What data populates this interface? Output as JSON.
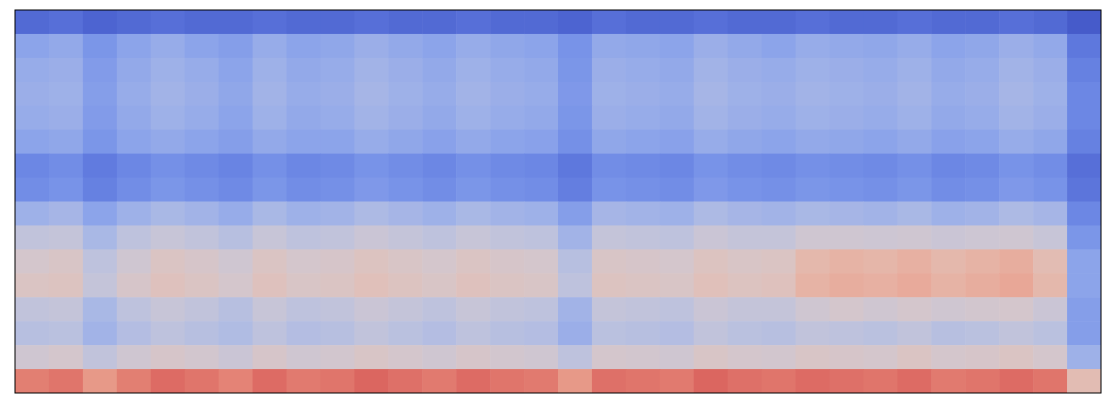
{
  "chart_data": {
    "type": "heatmap",
    "tick_labels": false,
    "zlim": [
      0,
      1
    ],
    "cells": [
      [
        0.1,
        0.12,
        0.08,
        0.1,
        0.12,
        0.1,
        0.1,
        0.12,
        0.1,
        0.1,
        0.12,
        0.1,
        0.1,
        0.12,
        0.1,
        0.1,
        0.08,
        0.12,
        0.1,
        0.1,
        0.12,
        0.1,
        0.1,
        0.12,
        0.1,
        0.1,
        0.12,
        0.1,
        0.1,
        0.12,
        0.1,
        0.05
      ],
      [
        0.3,
        0.32,
        0.25,
        0.3,
        0.33,
        0.3,
        0.28,
        0.33,
        0.3,
        0.31,
        0.34,
        0.32,
        0.3,
        0.33,
        0.31,
        0.3,
        0.24,
        0.32,
        0.31,
        0.3,
        0.34,
        0.32,
        0.3,
        0.33,
        0.32,
        0.31,
        0.33,
        0.3,
        0.31,
        0.34,
        0.32,
        0.15
      ],
      [
        0.33,
        0.34,
        0.27,
        0.32,
        0.35,
        0.33,
        0.3,
        0.35,
        0.32,
        0.33,
        0.36,
        0.34,
        0.32,
        0.35,
        0.33,
        0.32,
        0.25,
        0.34,
        0.33,
        0.32,
        0.36,
        0.34,
        0.33,
        0.35,
        0.34,
        0.33,
        0.35,
        0.32,
        0.33,
        0.36,
        0.34,
        0.18
      ],
      [
        0.34,
        0.35,
        0.28,
        0.33,
        0.36,
        0.34,
        0.31,
        0.36,
        0.33,
        0.34,
        0.37,
        0.35,
        0.33,
        0.36,
        0.34,
        0.33,
        0.26,
        0.35,
        0.34,
        0.33,
        0.37,
        0.35,
        0.34,
        0.36,
        0.35,
        0.34,
        0.36,
        0.33,
        0.34,
        0.37,
        0.35,
        0.2
      ],
      [
        0.33,
        0.34,
        0.27,
        0.32,
        0.35,
        0.33,
        0.3,
        0.35,
        0.32,
        0.33,
        0.36,
        0.34,
        0.32,
        0.35,
        0.33,
        0.32,
        0.25,
        0.34,
        0.33,
        0.32,
        0.36,
        0.34,
        0.33,
        0.35,
        0.34,
        0.33,
        0.35,
        0.32,
        0.33,
        0.36,
        0.34,
        0.2
      ],
      [
        0.3,
        0.31,
        0.25,
        0.3,
        0.32,
        0.3,
        0.28,
        0.32,
        0.3,
        0.3,
        0.33,
        0.31,
        0.29,
        0.32,
        0.3,
        0.29,
        0.23,
        0.31,
        0.3,
        0.29,
        0.33,
        0.31,
        0.3,
        0.32,
        0.31,
        0.3,
        0.32,
        0.29,
        0.3,
        0.33,
        0.31,
        0.18
      ],
      [
        0.2,
        0.22,
        0.16,
        0.2,
        0.23,
        0.21,
        0.19,
        0.23,
        0.2,
        0.21,
        0.24,
        0.22,
        0.2,
        0.23,
        0.21,
        0.2,
        0.15,
        0.22,
        0.21,
        0.2,
        0.24,
        0.22,
        0.21,
        0.23,
        0.22,
        0.21,
        0.23,
        0.2,
        0.21,
        0.24,
        0.22,
        0.12
      ],
      [
        0.22,
        0.24,
        0.18,
        0.22,
        0.25,
        0.23,
        0.21,
        0.25,
        0.22,
        0.23,
        0.26,
        0.24,
        0.22,
        0.25,
        0.23,
        0.22,
        0.17,
        0.24,
        0.23,
        0.22,
        0.26,
        0.24,
        0.23,
        0.25,
        0.24,
        0.23,
        0.25,
        0.22,
        0.23,
        0.26,
        0.24,
        0.14
      ],
      [
        0.35,
        0.37,
        0.3,
        0.35,
        0.38,
        0.36,
        0.33,
        0.38,
        0.35,
        0.36,
        0.39,
        0.37,
        0.35,
        0.38,
        0.36,
        0.35,
        0.28,
        0.37,
        0.36,
        0.35,
        0.39,
        0.37,
        0.36,
        0.38,
        0.37,
        0.36,
        0.38,
        0.35,
        0.36,
        0.39,
        0.37,
        0.2
      ],
      [
        0.45,
        0.46,
        0.38,
        0.44,
        0.47,
        0.45,
        0.42,
        0.47,
        0.44,
        0.45,
        0.48,
        0.46,
        0.44,
        0.47,
        0.45,
        0.44,
        0.36,
        0.46,
        0.45,
        0.44,
        0.48,
        0.46,
        0.46,
        0.5,
        0.5,
        0.49,
        0.5,
        0.48,
        0.49,
        0.5,
        0.47,
        0.25
      ],
      [
        0.52,
        0.54,
        0.44,
        0.5,
        0.55,
        0.53,
        0.5,
        0.55,
        0.52,
        0.53,
        0.56,
        0.54,
        0.52,
        0.55,
        0.53,
        0.52,
        0.42,
        0.54,
        0.53,
        0.52,
        0.56,
        0.54,
        0.55,
        0.62,
        0.64,
        0.63,
        0.65,
        0.62,
        0.64,
        0.66,
        0.6,
        0.3
      ],
      [
        0.55,
        0.56,
        0.46,
        0.53,
        0.57,
        0.55,
        0.52,
        0.57,
        0.54,
        0.55,
        0.58,
        0.56,
        0.54,
        0.57,
        0.55,
        0.54,
        0.44,
        0.56,
        0.55,
        0.54,
        0.58,
        0.56,
        0.57,
        0.64,
        0.66,
        0.65,
        0.67,
        0.64,
        0.66,
        0.68,
        0.62,
        0.3
      ],
      [
        0.45,
        0.46,
        0.38,
        0.44,
        0.47,
        0.45,
        0.42,
        0.47,
        0.44,
        0.45,
        0.48,
        0.46,
        0.44,
        0.47,
        0.45,
        0.44,
        0.36,
        0.46,
        0.45,
        0.44,
        0.48,
        0.46,
        0.46,
        0.5,
        0.52,
        0.5,
        0.52,
        0.5,
        0.51,
        0.52,
        0.48,
        0.28
      ],
      [
        0.42,
        0.43,
        0.36,
        0.41,
        0.44,
        0.42,
        0.4,
        0.44,
        0.41,
        0.42,
        0.45,
        0.43,
        0.41,
        0.44,
        0.42,
        0.41,
        0.34,
        0.43,
        0.42,
        0.41,
        0.45,
        0.43,
        0.42,
        0.45,
        0.44,
        0.43,
        0.45,
        0.42,
        0.43,
        0.45,
        0.43,
        0.28
      ],
      [
        0.5,
        0.52,
        0.45,
        0.5,
        0.53,
        0.51,
        0.48,
        0.53,
        0.5,
        0.51,
        0.54,
        0.52,
        0.5,
        0.53,
        0.51,
        0.5,
        0.44,
        0.52,
        0.51,
        0.5,
        0.54,
        0.52,
        0.51,
        0.54,
        0.53,
        0.52,
        0.55,
        0.52,
        0.53,
        0.55,
        0.52,
        0.35
      ],
      [
        0.78,
        0.8,
        0.72,
        0.78,
        0.82,
        0.8,
        0.77,
        0.82,
        0.79,
        0.8,
        0.83,
        0.81,
        0.79,
        0.82,
        0.8,
        0.79,
        0.72,
        0.81,
        0.8,
        0.79,
        0.83,
        0.81,
        0.8,
        0.82,
        0.81,
        0.8,
        0.82,
        0.79,
        0.8,
        0.82,
        0.8,
        0.6
      ]
    ]
  }
}
